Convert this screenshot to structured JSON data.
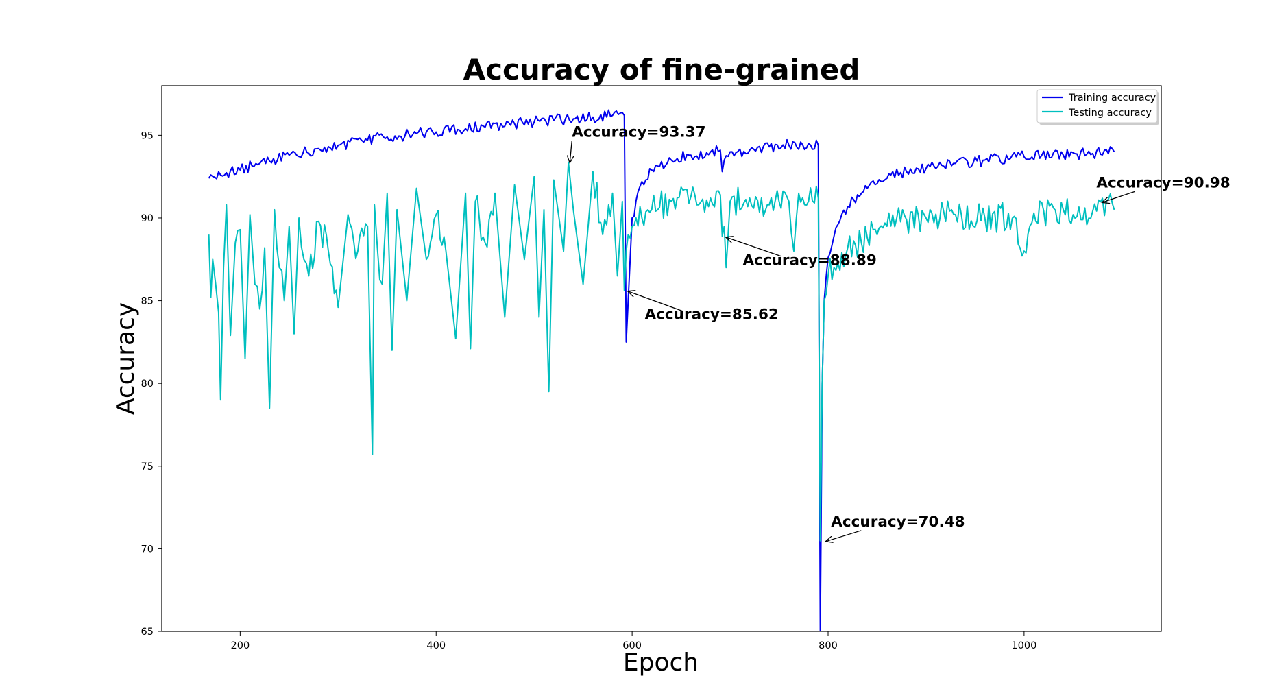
{
  "chart_data": {
    "type": "line",
    "title": "Accuracy of fine-grained",
    "xlabel": "Epoch",
    "ylabel": "Accuracy",
    "xlim": [
      120,
      1140
    ],
    "ylim": [
      65,
      98
    ],
    "xticks": [
      200,
      400,
      600,
      800,
      1000
    ],
    "yticks": [
      65,
      70,
      75,
      80,
      85,
      90,
      95
    ],
    "grid": false,
    "legend_position": "top-right",
    "series": [
      {
        "name": "Training accuracy",
        "color": "#0000ee",
        "x": [
          168,
          180,
          200,
          220,
          250,
          280,
          300,
          330,
          350,
          380,
          400,
          430,
          450,
          480,
          500,
          520,
          540,
          560,
          580,
          592,
          594,
          600,
          610,
          620,
          640,
          660,
          680,
          690,
          692,
          694,
          700,
          720,
          740,
          760,
          780,
          790,
          792,
          794,
          796,
          800,
          810,
          820,
          840,
          860,
          880,
          900,
          930,
          960,
          1000,
          1040,
          1070,
          1092
        ],
        "y": [
          92.4,
          92.6,
          92.9,
          93.3,
          93.8,
          94.2,
          94.4,
          94.7,
          94.9,
          95.1,
          95.2,
          95.4,
          95.5,
          95.7,
          95.8,
          95.9,
          96.0,
          96.1,
          96.2,
          96.2,
          82.5,
          90.0,
          92.2,
          92.9,
          93.5,
          93.8,
          94.0,
          94.1,
          92.8,
          93.5,
          94.0,
          94.1,
          94.3,
          94.4,
          94.5,
          94.4,
          65.0,
          80.0,
          85.0,
          87.6,
          89.6,
          90.7,
          91.8,
          92.4,
          92.8,
          93.0,
          93.3,
          93.5,
          93.7,
          93.8,
          93.9,
          94.0
        ]
      },
      {
        "name": "Testing accuracy",
        "color": "#00bfbf",
        "x": [
          168,
          170,
          172,
          175,
          178,
          180,
          183,
          186,
          190,
          195,
          200,
          205,
          210,
          215,
          220,
          225,
          230,
          235,
          240,
          245,
          250,
          255,
          260,
          265,
          270,
          280,
          290,
          300,
          310,
          320,
          330,
          335,
          337,
          340,
          345,
          350,
          355,
          360,
          370,
          380,
          390,
          400,
          410,
          420,
          430,
          435,
          440,
          450,
          460,
          470,
          480,
          490,
          500,
          505,
          510,
          515,
          520,
          530,
          535,
          540,
          550,
          560,
          570,
          580,
          585,
          590,
          592,
          594,
          596,
          600,
          610,
          620,
          640,
          660,
          680,
          690,
          692,
          694,
          696,
          700,
          720,
          740,
          760,
          765,
          770,
          780,
          790,
          792,
          794,
          796,
          800,
          810,
          820,
          840,
          860,
          880,
          900,
          930,
          960,
          990,
          1000,
          1010,
          1040,
          1070,
          1078,
          1092
        ],
        "y": [
          89.0,
          85.2,
          87.5,
          86.0,
          84.3,
          79.0,
          87.0,
          90.8,
          82.9,
          88.5,
          89.3,
          81.5,
          90.2,
          86.0,
          84.5,
          88.2,
          78.5,
          90.5,
          87.0,
          85.0,
          89.5,
          83.0,
          90.0,
          87.5,
          86.5,
          89.8,
          88.0,
          84.6,
          90.2,
          88.0,
          89.5,
          75.7,
          90.8,
          88.2,
          86.0,
          91.5,
          82.0,
          90.5,
          85.0,
          91.8,
          87.5,
          90.2,
          88.0,
          82.7,
          91.5,
          82.1,
          91.0,
          88.5,
          91.5,
          84.0,
          92.0,
          87.5,
          92.5,
          84.0,
          90.5,
          79.5,
          92.3,
          88.0,
          93.37,
          90.5,
          86.0,
          92.8,
          89.0,
          91.5,
          86.5,
          91.0,
          85.62,
          88.0,
          89.0,
          89.5,
          90.0,
          90.5,
          91.0,
          91.3,
          91.2,
          91.4,
          88.89,
          89.5,
          87.0,
          91.0,
          91.2,
          90.8,
          91.0,
          88.0,
          91.5,
          91.0,
          91.2,
          70.48,
          80.0,
          85.0,
          86.5,
          87.3,
          88.2,
          88.8,
          89.5,
          89.9,
          90.0,
          90.2,
          90.0,
          90.1,
          88.0,
          90.3,
          90.5,
          90.4,
          90.98,
          90.5
        ]
      }
    ],
    "annotations": [
      {
        "text": "Accuracy=93.37",
        "x": 535,
        "y": 93.37
      },
      {
        "text": "Accuracy=85.62",
        "x": 594,
        "y": 85.62
      },
      {
        "text": "Accuracy=88.89",
        "x": 694,
        "y": 88.89
      },
      {
        "text": "Accuracy=70.48",
        "x": 796,
        "y": 70.48
      },
      {
        "text": "Accuracy=90.98",
        "x": 1078,
        "y": 90.98
      }
    ]
  }
}
